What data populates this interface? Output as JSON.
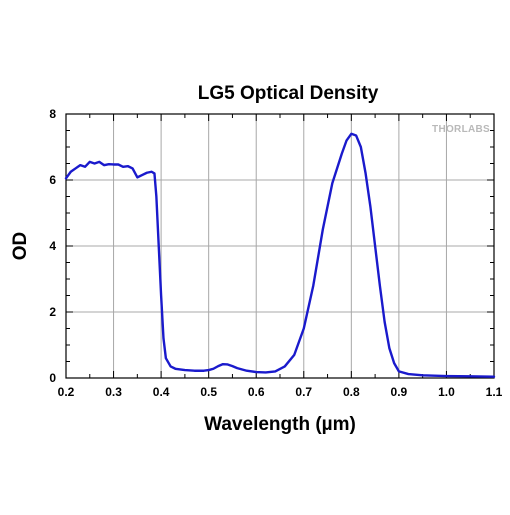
{
  "chart_data": {
    "type": "line",
    "title": "LG5 Optical Density",
    "xlabel": "Wavelength (µm)",
    "ylabel": "OD",
    "xlim": [
      0.2,
      1.1
    ],
    "ylim": [
      0,
      8
    ],
    "xticks": [
      "0.2",
      "0.3",
      "0.4",
      "0.5",
      "0.6",
      "0.7",
      "0.8",
      "0.9",
      "1.0",
      "1.1"
    ],
    "yticks": [
      "0",
      "2",
      "4",
      "6",
      "8"
    ],
    "grid": true,
    "line_color": "#1a1acc",
    "watermark": "THORLABS",
    "series": [
      {
        "points": [
          [
            0.2,
            6.05
          ],
          [
            0.21,
            6.25
          ],
          [
            0.22,
            6.35
          ],
          [
            0.23,
            6.45
          ],
          [
            0.24,
            6.4
          ],
          [
            0.25,
            6.55
          ],
          [
            0.26,
            6.5
          ],
          [
            0.27,
            6.55
          ],
          [
            0.28,
            6.45
          ],
          [
            0.29,
            6.48
          ],
          [
            0.3,
            6.47
          ],
          [
            0.31,
            6.47
          ],
          [
            0.32,
            6.4
          ],
          [
            0.33,
            6.42
          ],
          [
            0.34,
            6.35
          ],
          [
            0.35,
            6.08
          ],
          [
            0.36,
            6.15
          ],
          [
            0.37,
            6.22
          ],
          [
            0.38,
            6.25
          ],
          [
            0.386,
            6.2
          ],
          [
            0.39,
            5.5
          ],
          [
            0.395,
            4.0
          ],
          [
            0.4,
            2.5
          ],
          [
            0.405,
            1.2
          ],
          [
            0.41,
            0.6
          ],
          [
            0.42,
            0.35
          ],
          [
            0.43,
            0.28
          ],
          [
            0.45,
            0.24
          ],
          [
            0.47,
            0.22
          ],
          [
            0.49,
            0.22
          ],
          [
            0.5,
            0.24
          ],
          [
            0.51,
            0.28
          ],
          [
            0.52,
            0.36
          ],
          [
            0.53,
            0.42
          ],
          [
            0.54,
            0.41
          ],
          [
            0.55,
            0.36
          ],
          [
            0.56,
            0.3
          ],
          [
            0.58,
            0.22
          ],
          [
            0.6,
            0.18
          ],
          [
            0.62,
            0.17
          ],
          [
            0.64,
            0.2
          ],
          [
            0.66,
            0.35
          ],
          [
            0.68,
            0.7
          ],
          [
            0.7,
            1.5
          ],
          [
            0.72,
            2.8
          ],
          [
            0.74,
            4.5
          ],
          [
            0.76,
            5.9
          ],
          [
            0.78,
            6.8
          ],
          [
            0.79,
            7.2
          ],
          [
            0.8,
            7.4
          ],
          [
            0.81,
            7.35
          ],
          [
            0.82,
            7.0
          ],
          [
            0.83,
            6.2
          ],
          [
            0.84,
            5.2
          ],
          [
            0.85,
            4.0
          ],
          [
            0.86,
            2.8
          ],
          [
            0.87,
            1.7
          ],
          [
            0.88,
            0.9
          ],
          [
            0.89,
            0.45
          ],
          [
            0.9,
            0.2
          ],
          [
            0.92,
            0.12
          ],
          [
            0.95,
            0.08
          ],
          [
            1.0,
            0.06
          ],
          [
            1.05,
            0.05
          ],
          [
            1.1,
            0.04
          ]
        ]
      }
    ]
  }
}
